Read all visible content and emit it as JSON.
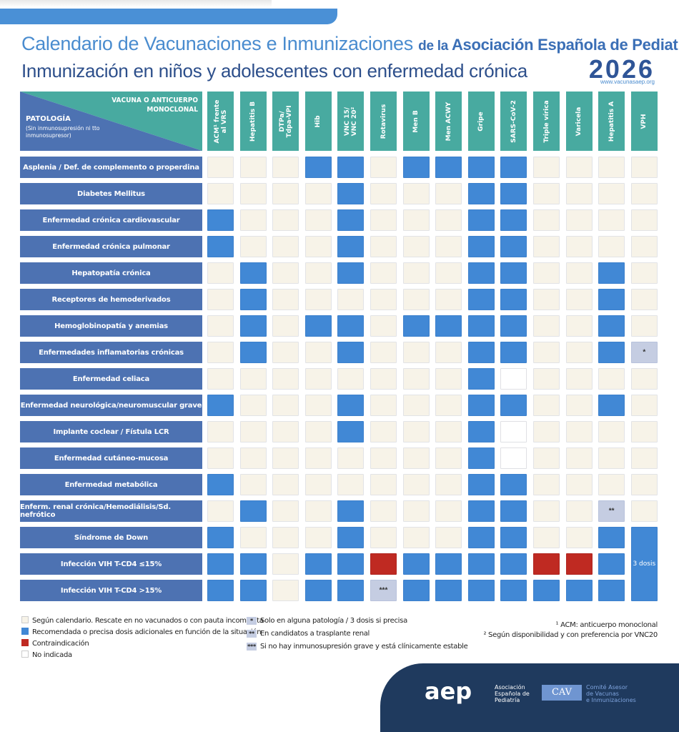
{
  "header": {
    "title_part1": "Calendario de Vacunaciones e Inmunizaciones ",
    "title_part2": "de la ",
    "title_part3": "Asociación Española de Pediatría",
    "subtitle": "Inmunización en niños y adolescentes con enfermedad crónica",
    "year": "2026",
    "url": "www.vacunasaep.org"
  },
  "corner": {
    "vaccine_header": "VACUNA O ANTICUERPO MONOCLONAL",
    "pathology_header": "PATOLOGÍA",
    "pathology_sub": "(Sin inmunosupresión ni tto inmunosupresor)"
  },
  "colors": {
    "segun_calendario": "#f7f3e8",
    "recomendada": "#4188d5",
    "contraindicacion": "#bf2a22",
    "no_indicada": "#ffffff",
    "nota": "#c5cde2",
    "header_teal": "#48aaa0",
    "row_label": "#4d72b2"
  },
  "vaccines": [
    "ACM¹ frente\nal VRS",
    "Hepatitis B",
    "DTPa/\nTdpa-VPI",
    "Hib",
    "VNC 15/\nVNC 20²",
    "Rotavirus",
    "Men B",
    "Men ACWY",
    "Gripe",
    "SARS-CoV-2",
    "Triple vírica",
    "Varicela",
    "Hepatitis A",
    "VPH"
  ],
  "rows": [
    {
      "label": "Asplenia / Def. de complemento o properdina",
      "cells": [
        1,
        1,
        1,
        2,
        2,
        1,
        2,
        2,
        2,
        2,
        1,
        1,
        1,
        1
      ]
    },
    {
      "label": "Diabetes Mellitus",
      "cells": [
        1,
        1,
        1,
        1,
        2,
        1,
        1,
        1,
        2,
        2,
        1,
        1,
        1,
        1
      ]
    },
    {
      "label": "Enfermedad crónica cardiovascular",
      "cells": [
        2,
        1,
        1,
        1,
        2,
        1,
        1,
        1,
        2,
        2,
        1,
        1,
        1,
        1
      ]
    },
    {
      "label": "Enfermedad crónica pulmonar",
      "cells": [
        2,
        1,
        1,
        1,
        2,
        1,
        1,
        1,
        2,
        2,
        1,
        1,
        1,
        1
      ]
    },
    {
      "label": "Hepatopatía crónica",
      "cells": [
        1,
        2,
        1,
        1,
        2,
        1,
        1,
        1,
        2,
        2,
        1,
        1,
        2,
        1
      ]
    },
    {
      "label": "Receptores de hemoderivados",
      "cells": [
        1,
        2,
        1,
        1,
        1,
        1,
        1,
        1,
        2,
        2,
        1,
        1,
        2,
        1
      ]
    },
    {
      "label": "Hemoglobinopatía y anemias",
      "cells": [
        1,
        2,
        1,
        2,
        2,
        1,
        2,
        2,
        2,
        2,
        1,
        1,
        2,
        1
      ]
    },
    {
      "label": "Enfermedades inflamatorias crónicas",
      "cells": [
        1,
        2,
        1,
        1,
        2,
        1,
        1,
        1,
        2,
        2,
        1,
        1,
        2,
        5
      ],
      "marks": {
        "13": "*"
      }
    },
    {
      "label": "Enfermedad celiaca",
      "cells": [
        1,
        1,
        1,
        1,
        1,
        1,
        1,
        1,
        2,
        4,
        1,
        1,
        1,
        1
      ]
    },
    {
      "label": "Enfermedad neurológica/neuromuscular grave",
      "cells": [
        2,
        1,
        1,
        1,
        2,
        1,
        1,
        1,
        2,
        2,
        1,
        1,
        2,
        1
      ]
    },
    {
      "label": "Implante coclear / Fístula LCR",
      "cells": [
        1,
        1,
        1,
        1,
        2,
        1,
        1,
        1,
        2,
        4,
        1,
        1,
        1,
        1
      ]
    },
    {
      "label": "Enfermedad cutáneo-mucosa",
      "cells": [
        1,
        1,
        1,
        1,
        1,
        1,
        1,
        1,
        2,
        4,
        1,
        1,
        1,
        1
      ]
    },
    {
      "label": "Enfermedad metabólica",
      "cells": [
        2,
        1,
        1,
        1,
        1,
        1,
        1,
        1,
        2,
        2,
        1,
        1,
        1,
        1
      ]
    },
    {
      "label": "Enferm. renal crónica/Hemodiálisis/Sd. nefrótico",
      "cells": [
        1,
        2,
        1,
        1,
        2,
        1,
        1,
        1,
        2,
        2,
        1,
        1,
        5,
        1
      ],
      "marks": {
        "12": "**"
      }
    },
    {
      "label": "Síndrome de Down",
      "cells": [
        2,
        1,
        1,
        1,
        2,
        1,
        1,
        1,
        2,
        2,
        1,
        1,
        2,
        0
      ]
    },
    {
      "label": "Infección VIH T-CD4 ≤15%",
      "cells": [
        2,
        2,
        1,
        2,
        2,
        3,
        2,
        2,
        2,
        2,
        3,
        3,
        2,
        0
      ]
    },
    {
      "label": "Infección VIH T-CD4 >15%",
      "cells": [
        2,
        2,
        1,
        2,
        2,
        5,
        2,
        2,
        2,
        2,
        2,
        2,
        2,
        0
      ],
      "marks": {
        "5": "***"
      }
    }
  ],
  "vph_merged": {
    "label": "3 dosis"
  },
  "legend": {
    "colors": [
      "Según calendario. Rescate en no vacunados o con pauta incompleta",
      "Recomendada o precisa dosis adicionales en función de la situación",
      "Contraindicación",
      "No indicada"
    ],
    "symbols": [
      {
        "sym": "*",
        "text": "Solo en alguna patología / 3 dosis si precisa"
      },
      {
        "sym": "**",
        "text": "En candidatos a trasplante renal"
      },
      {
        "sym": "***",
        "text": "Si no hay inmunosupresión grave y está clínicamente estable"
      }
    ],
    "notes": [
      "¹ ACM: anticuerpo monoclonal",
      "² Según disponibilidad y con preferencia por VNC20"
    ]
  },
  "footer": {
    "aep_logo": "aep",
    "aep_text": [
      "Asociación",
      "Española de",
      "Pediatría"
    ],
    "cav_logo": "CAV",
    "cav_text": [
      "Comité Asesor",
      "de Vacunas",
      "e Inmunizaciones"
    ]
  }
}
